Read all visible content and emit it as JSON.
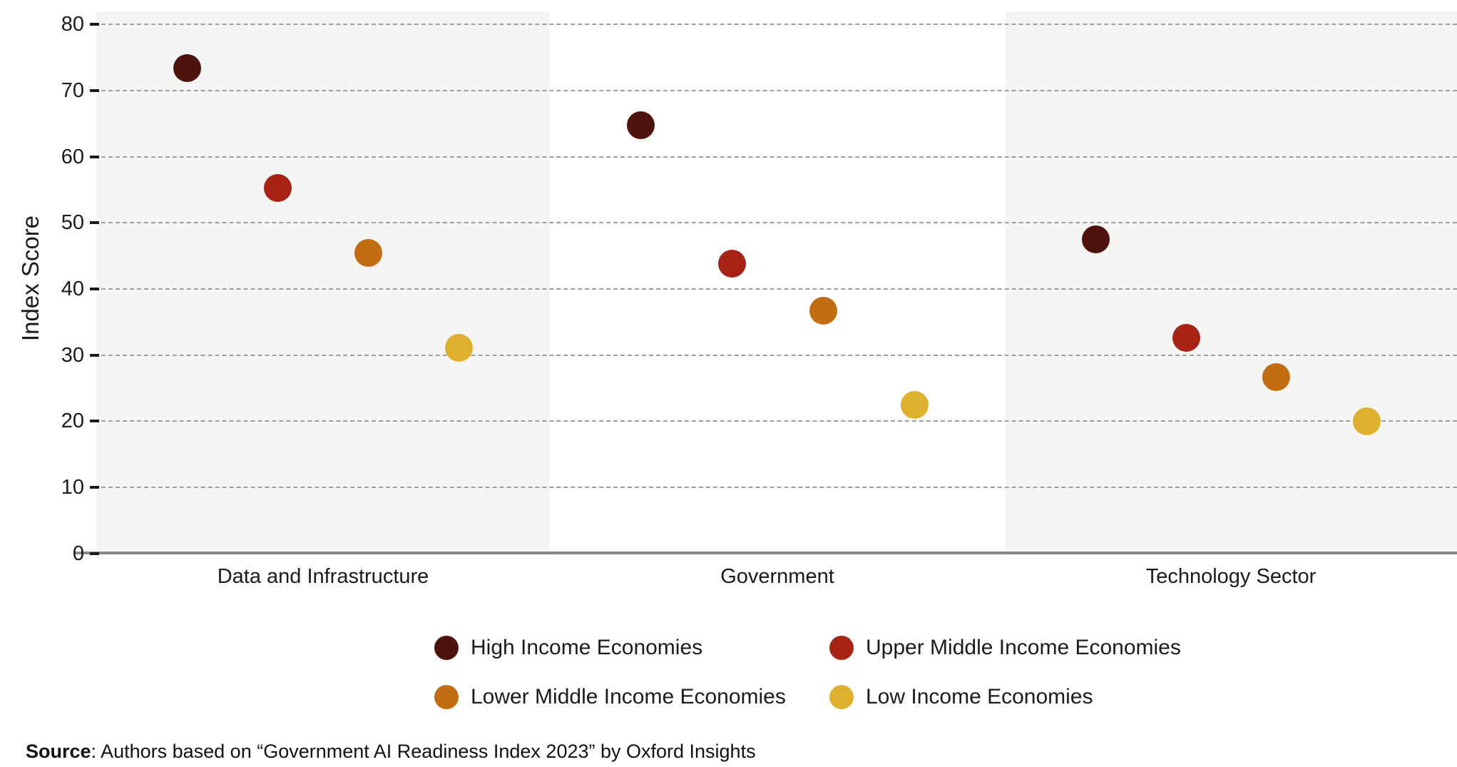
{
  "chart_data": {
    "type": "scatter",
    "title": "",
    "xlabel": "",
    "ylabel": "Index Score",
    "ylim": [
      0,
      80
    ],
    "yticks": [
      0,
      10,
      20,
      30,
      40,
      50,
      60,
      70,
      80
    ],
    "grid": "horizontal dashed gridlines, on",
    "legend_position": "bottom",
    "plot_band_style": "alternating light-gray / white background per category",
    "categories": [
      "Data and Infrastructure",
      "Government",
      "Technology Sector"
    ],
    "series": [
      {
        "name": "High Income Economies",
        "color": "#4e130c",
        "values": [
          73.4,
          64.8,
          47.5
        ]
      },
      {
        "name": "Upper Middle Income Economies",
        "color": "#a82315",
        "values": [
          55.3,
          43.8,
          32.6
        ]
      },
      {
        "name": "Lower Middle Income Economies",
        "color": "#c26d12",
        "values": [
          45.4,
          36.7,
          26.7
        ]
      },
      {
        "name": "Low Income Economies",
        "color": "#ddb12d",
        "values": [
          31.1,
          22.4,
          20.0
        ]
      }
    ]
  },
  "colors": {
    "band_gray": "#f5f5f3",
    "gridline": "#9e9e9e",
    "axis_line": "#8a8a8a",
    "text": "#1b1b1b"
  },
  "source": {
    "label": "Source",
    "text": ": Authors based on “Government AI Readiness Index 2023” by Oxford Insights"
  }
}
